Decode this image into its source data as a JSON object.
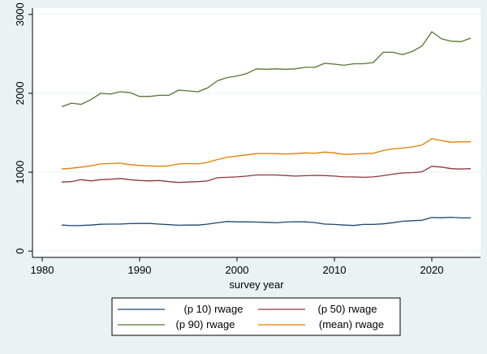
{
  "chart_data": {
    "type": "line",
    "title": "",
    "xlabel": "survey year",
    "ylabel": "",
    "xlim": [
      1979,
      2025
    ],
    "ylim": [
      -80,
      3080
    ],
    "xticks": [
      1980,
      1990,
      2000,
      2010,
      2020
    ],
    "yticks": [
      0,
      1000,
      2000,
      3000
    ],
    "grid": {
      "horizontal": true,
      "vertical": false
    },
    "legend": {
      "placement": "bottom",
      "columns": 2
    },
    "x": [
      1982,
      1983,
      1984,
      1985,
      1986,
      1987,
      1988,
      1989,
      1990,
      1991,
      1992,
      1993,
      1994,
      1995,
      1996,
      1997,
      1998,
      1999,
      2000,
      2001,
      2002,
      2003,
      2004,
      2005,
      2006,
      2007,
      2008,
      2009,
      2010,
      2011,
      2012,
      2013,
      2014,
      2015,
      2016,
      2017,
      2018,
      2019,
      2020,
      2021,
      2022,
      2023,
      2024
    ],
    "series": [
      {
        "name": "(p 10) rwage",
        "color": "#1a476f",
        "values": [
          330,
          322,
          325,
          330,
          340,
          342,
          342,
          348,
          350,
          350,
          342,
          335,
          328,
          330,
          330,
          342,
          358,
          375,
          370,
          370,
          368,
          365,
          358,
          368,
          372,
          370,
          362,
          342,
          338,
          330,
          325,
          338,
          338,
          345,
          360,
          378,
          385,
          390,
          425,
          422,
          428,
          420,
          420
        ]
      },
      {
        "name": "(p 50) rwage",
        "color": "#90353b",
        "values": [
          875,
          880,
          905,
          890,
          905,
          910,
          920,
          905,
          895,
          890,
          895,
          880,
          870,
          875,
          880,
          890,
          930,
          935,
          940,
          950,
          965,
          965,
          965,
          958,
          950,
          955,
          960,
          958,
          950,
          940,
          940,
          935,
          940,
          955,
          975,
          990,
          995,
          1005,
          1075,
          1065,
          1045,
          1040,
          1045
        ]
      },
      {
        "name": "(p 90) rwage",
        "color": "#55752f",
        "values": [
          1830,
          1875,
          1860,
          1920,
          2000,
          1990,
          2020,
          2010,
          1960,
          1960,
          1975,
          1975,
          2040,
          2030,
          2020,
          2070,
          2160,
          2200,
          2220,
          2250,
          2310,
          2305,
          2310,
          2305,
          2310,
          2330,
          2330,
          2380,
          2370,
          2355,
          2375,
          2375,
          2390,
          2520,
          2520,
          2490,
          2530,
          2600,
          2780,
          2690,
          2660,
          2655,
          2700
        ]
      },
      {
        "name": "(mean) rwage",
        "color": "#e37e00",
        "values": [
          1040,
          1050,
          1065,
          1080,
          1105,
          1110,
          1115,
          1095,
          1085,
          1080,
          1075,
          1080,
          1105,
          1110,
          1105,
          1125,
          1160,
          1190,
          1205,
          1220,
          1235,
          1235,
          1235,
          1230,
          1235,
          1245,
          1240,
          1255,
          1245,
          1225,
          1230,
          1235,
          1240,
          1275,
          1295,
          1305,
          1320,
          1345,
          1425,
          1400,
          1380,
          1385,
          1385
        ]
      }
    ]
  }
}
